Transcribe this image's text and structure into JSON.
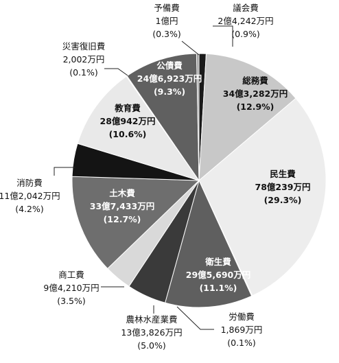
{
  "chart_data": {
    "type": "pie",
    "start": "top",
    "direction": "clockwise",
    "slices": [
      {
        "key": "gikai",
        "name": "議会費",
        "amount": "2億4,242万円",
        "pct_label": "(0.9%)",
        "value": 0.9,
        "color": "#1a1a1a",
        "text_color": "#111111"
      },
      {
        "key": "somu",
        "name": "総務費",
        "amount": "34億3,282万円",
        "pct_label": "(12.9%)",
        "value": 12.9,
        "color": "#c8c8c8",
        "text_color": "#111111"
      },
      {
        "key": "minsei",
        "name": "民生費",
        "amount": "78億239万円",
        "pct_label": "(29.3%)",
        "value": 29.3,
        "color": "#ededed",
        "text_color": "#111111"
      },
      {
        "key": "rodo",
        "name": "労働費",
        "amount": "1,869万円",
        "pct_label": "(0.1%)",
        "value": 0.1,
        "color": "#bdbdbd",
        "text_color": "#111111"
      },
      {
        "key": "eisei",
        "name": "衛生費",
        "amount": "29億5,690万円",
        "pct_label": "(11.1%)",
        "value": 11.1,
        "color": "#5f5f5f",
        "text_color": "#ffffff"
      },
      {
        "key": "norin",
        "name": "農林水産業費",
        "amount": "13億3,826万円",
        "pct_label": "(5.0%)",
        "value": 5.0,
        "color": "#3a3a3a",
        "text_color": "#111111"
      },
      {
        "key": "shoko",
        "name": "商工費",
        "amount": "9億4,210万円",
        "pct_label": "(3.5%)",
        "value": 3.5,
        "color": "#d9d9d9",
        "text_color": "#111111"
      },
      {
        "key": "doboku",
        "name": "土木費",
        "amount": "33億7,433万円",
        "pct_label": "(12.7%)",
        "value": 12.7,
        "color": "#6e6e6e",
        "text_color": "#ffffff"
      },
      {
        "key": "shobo",
        "name": "消防費",
        "amount": "11億2,042万円",
        "pct_label": "(4.2%)",
        "value": 4.2,
        "color": "#141414",
        "text_color": "#111111"
      },
      {
        "key": "kyoiku",
        "name": "教育費",
        "amount": "28億942万円",
        "pct_label": "(10.6%)",
        "value": 10.6,
        "color": "#e9e9e9",
        "text_color": "#111111"
      },
      {
        "key": "saigai",
        "name": "災害復旧費",
        "amount": "2,002万円",
        "pct_label": "(0.1%)",
        "value": 0.1,
        "color": "#b0b0b0",
        "text_color": "#111111"
      },
      {
        "key": "kosai",
        "name": "公債費",
        "amount": "24億6,923万円",
        "pct_label": "(9.3%)",
        "value": 9.3,
        "color": "#606060",
        "text_color": "#ffffff"
      },
      {
        "key": "yobi",
        "name": "予備費",
        "amount": "1億円",
        "pct_label": "(0.3%)",
        "value": 0.3,
        "color": "#9a9a9a",
        "text_color": "#111111"
      }
    ]
  }
}
